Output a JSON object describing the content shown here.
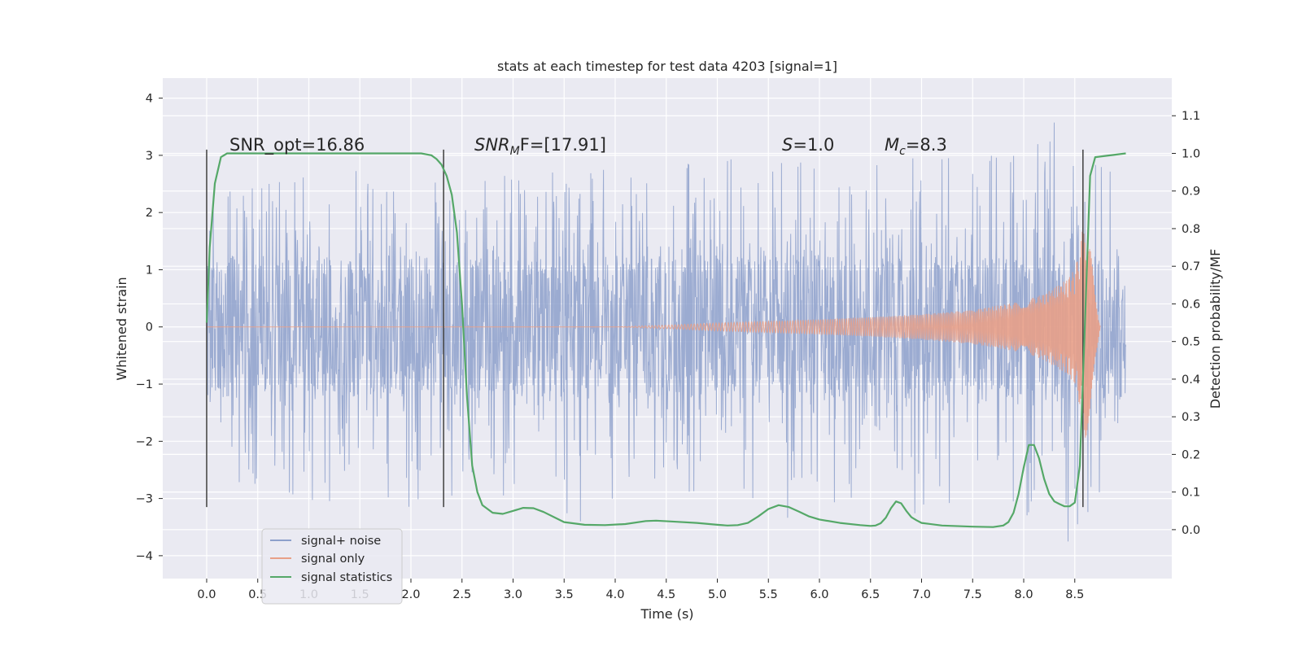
{
  "chart_data": {
    "type": "line",
    "title": "stats at each timestep for test data 4203 [signal=1]",
    "xlabel": "Time (s)",
    "ylabel": "Whitened strain",
    "y2label": "Detection probability/MF",
    "xlim": [
      -0.43,
      9.45
    ],
    "ylim": [
      -4.4,
      4.35
    ],
    "y2lim": [
      -0.13,
      1.2
    ],
    "x_ticks": [
      "0.0",
      "0.5",
      "1.0",
      "1.5",
      "2.0",
      "2.5",
      "3.0",
      "3.5",
      "4.0",
      "4.5",
      "5.0",
      "5.5",
      "6.0",
      "6.5",
      "7.0",
      "7.5",
      "8.0",
      "8.5"
    ],
    "y_ticks": [
      "−4",
      "−3",
      "−2",
      "−1",
      "0",
      "1",
      "2",
      "3",
      "4"
    ],
    "y2_ticks": [
      "0.0",
      "0.1",
      "0.2",
      "0.3",
      "0.4",
      "0.5",
      "0.6",
      "0.7",
      "0.8",
      "0.9",
      "1.0",
      "1.1"
    ],
    "grid": true,
    "legend_position": "lower-left",
    "annotations": {
      "snr_opt": "SNR_opt=16.86",
      "snr_mf_main": "SNR",
      "snr_mf_sub": "M",
      "snr_mf_rest": "F=[17.91]",
      "s_main": "S",
      "s_rest": "=1.0",
      "mc_main": "M",
      "mc_sub": "c",
      "mc_rest": "=8.3"
    },
    "markers": [
      0.0,
      2.32,
      8.58
    ],
    "series": [
      {
        "name": "signal+ noise",
        "color": "#8da0cb",
        "envelope": {
          "t": [
            0.0,
            0.5,
            1.0,
            1.5,
            2.0,
            2.5,
            3.0,
            3.5,
            4.0,
            4.5,
            5.0,
            5.5,
            6.0,
            6.5,
            7.0,
            7.5,
            8.0,
            8.5,
            9.0
          ],
          "upper": [
            2.2,
            2.6,
            2.7,
            3.1,
            2.8,
            2.5,
            2.8,
            2.7,
            2.9,
            2.8,
            3.0,
            2.9,
            3.2,
            2.9,
            3.0,
            3.1,
            3.3,
            3.9,
            2.3
          ],
          "lower": [
            -2.4,
            -2.9,
            -3.1,
            -3.4,
            -3.3,
            -2.9,
            -3.0,
            -3.4,
            -3.6,
            -2.9,
            -3.0,
            -3.5,
            -3.1,
            -3.4,
            -3.3,
            -3.0,
            -3.3,
            -3.9,
            -2.1
          ]
        }
      },
      {
        "name": "signal only",
        "color": "#e8a088",
        "envelope": {
          "t": [
            0.0,
            4.0,
            4.5,
            5.0,
            5.5,
            6.0,
            6.5,
            7.0,
            7.5,
            8.0,
            8.2,
            8.4,
            8.5,
            8.55,
            8.6,
            8.65,
            8.7,
            8.75
          ],
          "amplitude": [
            0.0,
            0.0,
            0.03,
            0.07,
            0.1,
            0.13,
            0.17,
            0.22,
            0.3,
            0.45,
            0.58,
            0.8,
            1.0,
            1.4,
            2.0,
            1.6,
            0.6,
            0.0
          ]
        }
      },
      {
        "name": "signal statistics",
        "color": "#55a868",
        "x": [
          0.0,
          0.03,
          0.08,
          0.14,
          0.2,
          0.3,
          0.5,
          1.0,
          1.5,
          2.0,
          2.1,
          2.2,
          2.25,
          2.3,
          2.35,
          2.4,
          2.45,
          2.5,
          2.55,
          2.6,
          2.65,
          2.7,
          2.8,
          2.9,
          3.0,
          3.1,
          3.2,
          3.3,
          3.5,
          3.7,
          3.9,
          4.1,
          4.3,
          4.4,
          4.6,
          4.8,
          5.0,
          5.1,
          5.2,
          5.3,
          5.4,
          5.5,
          5.6,
          5.7,
          5.8,
          5.9,
          6.0,
          6.2,
          6.4,
          6.5,
          6.55,
          6.6,
          6.65,
          6.7,
          6.75,
          6.8,
          6.85,
          6.9,
          6.95,
          7.0,
          7.2,
          7.5,
          7.7,
          7.8,
          7.85,
          7.9,
          7.95,
          8.0,
          8.05,
          8.1,
          8.15,
          8.2,
          8.25,
          8.3,
          8.35,
          8.4,
          8.45,
          8.5,
          8.55,
          8.6,
          8.65,
          8.7,
          9.0
        ],
        "y": [
          0.55,
          0.75,
          0.92,
          0.99,
          1.0,
          1.0,
          1.0,
          1.0,
          1.0,
          1.0,
          1.0,
          0.995,
          0.985,
          0.97,
          0.94,
          0.89,
          0.79,
          0.6,
          0.35,
          0.17,
          0.1,
          0.065,
          0.045,
          0.042,
          0.05,
          0.058,
          0.057,
          0.047,
          0.02,
          0.013,
          0.012,
          0.015,
          0.023,
          0.024,
          0.021,
          0.018,
          0.013,
          0.011,
          0.012,
          0.018,
          0.035,
          0.055,
          0.065,
          0.06,
          0.048,
          0.035,
          0.027,
          0.018,
          0.012,
          0.01,
          0.011,
          0.017,
          0.032,
          0.057,
          0.075,
          0.07,
          0.05,
          0.033,
          0.025,
          0.018,
          0.011,
          0.008,
          0.007,
          0.011,
          0.02,
          0.045,
          0.095,
          0.165,
          0.225,
          0.225,
          0.19,
          0.135,
          0.095,
          0.075,
          0.068,
          0.062,
          0.062,
          0.072,
          0.17,
          0.55,
          0.94,
          0.99,
          1.0
        ]
      }
    ]
  }
}
